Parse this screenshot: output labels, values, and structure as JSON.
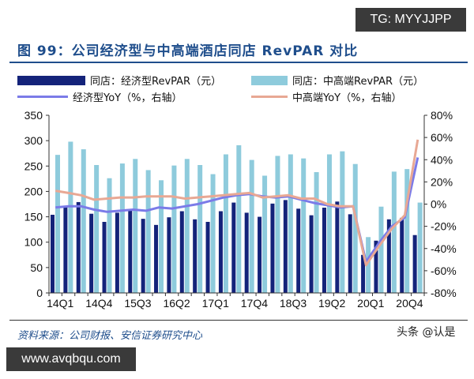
{
  "title": "图 99：公司经济型与中高端酒店同店 RevPAR 对比",
  "source": "资料来源：公司财报、安信证券研究中心",
  "watermarks": {
    "tg": "TG: MYYJJPP",
    "url": "www.avqbqu.com",
    "toutiao": "头条 @认是"
  },
  "chart_data": {
    "type": "bar",
    "categories": [
      "14Q1",
      "14Q2",
      "14Q3",
      "14Q4",
      "15Q1",
      "15Q2",
      "15Q3",
      "15Q4",
      "16Q1",
      "16Q2",
      "16Q3",
      "16Q4",
      "17Q1",
      "17Q2",
      "17Q3",
      "17Q4",
      "18Q1",
      "18Q2",
      "18Q3",
      "18Q4",
      "19Q1",
      "19Q2",
      "19Q3",
      "19Q4",
      "20Q1",
      "20Q2",
      "20Q3",
      "20Q4",
      "21Q1"
    ],
    "xtick_labels": [
      "14Q1",
      "14Q4",
      "15Q3",
      "16Q2",
      "17Q1",
      "17Q4",
      "18Q3",
      "19Q2",
      "20Q1",
      "20Q4"
    ],
    "ylim": [
      0,
      350
    ],
    "yticks": [
      "0",
      "50",
      "100",
      "150",
      "200",
      "250",
      "300",
      "350"
    ],
    "y2lim": [
      -80,
      80
    ],
    "y2ticks": [
      "-80%",
      "-60%",
      "-40%",
      "-20%",
      "0%",
      "20%",
      "40%",
      "60%",
      "80%"
    ],
    "series": [
      {
        "name": "同店：经济型RevPAR（元）",
        "type": "bar",
        "axis": "left",
        "color": "#14237a",
        "values": [
          154,
          170,
          179,
          156,
          140,
          158,
          163,
          146,
          134,
          149,
          161,
          145,
          140,
          161,
          178,
          158,
          150,
          176,
          183,
          166,
          153,
          168,
          180,
          155,
          75,
          103,
          145,
          148,
          114
        ]
      },
      {
        "name": "同店：中高端RevPAR（元）",
        "type": "bar",
        "axis": "left",
        "color": "#8ecbdc",
        "values": [
          272,
          298,
          283,
          252,
          226,
          255,
          264,
          242,
          222,
          251,
          264,
          252,
          234,
          273,
          291,
          262,
          231,
          270,
          273,
          265,
          238,
          273,
          279,
          254,
          110,
          170,
          239,
          244,
          178
        ]
      },
      {
        "name": "经济型YoY（%，右轴）",
        "type": "line",
        "axis": "right",
        "color": "#7b7be8",
        "values": [
          -3,
          -2,
          -2,
          -5,
          -7,
          -6,
          -5,
          -6,
          -3,
          -4,
          -2,
          0,
          3,
          6,
          8,
          9,
          7,
          6,
          7,
          4,
          1,
          -1,
          -3,
          -2,
          -52,
          -35,
          -20,
          -12,
          42
        ]
      },
      {
        "name": "中高端YoY（%，右轴）",
        "type": "line",
        "axis": "right",
        "color": "#e8a894",
        "values": [
          12,
          10,
          8,
          4,
          5,
          6,
          6,
          7,
          7,
          7,
          5,
          6,
          7,
          8,
          9,
          10,
          6,
          7,
          8,
          5,
          5,
          0,
          -2,
          -2,
          -55,
          -38,
          -22,
          -10,
          58
        ]
      }
    ],
    "grid": false,
    "legend": "top"
  }
}
